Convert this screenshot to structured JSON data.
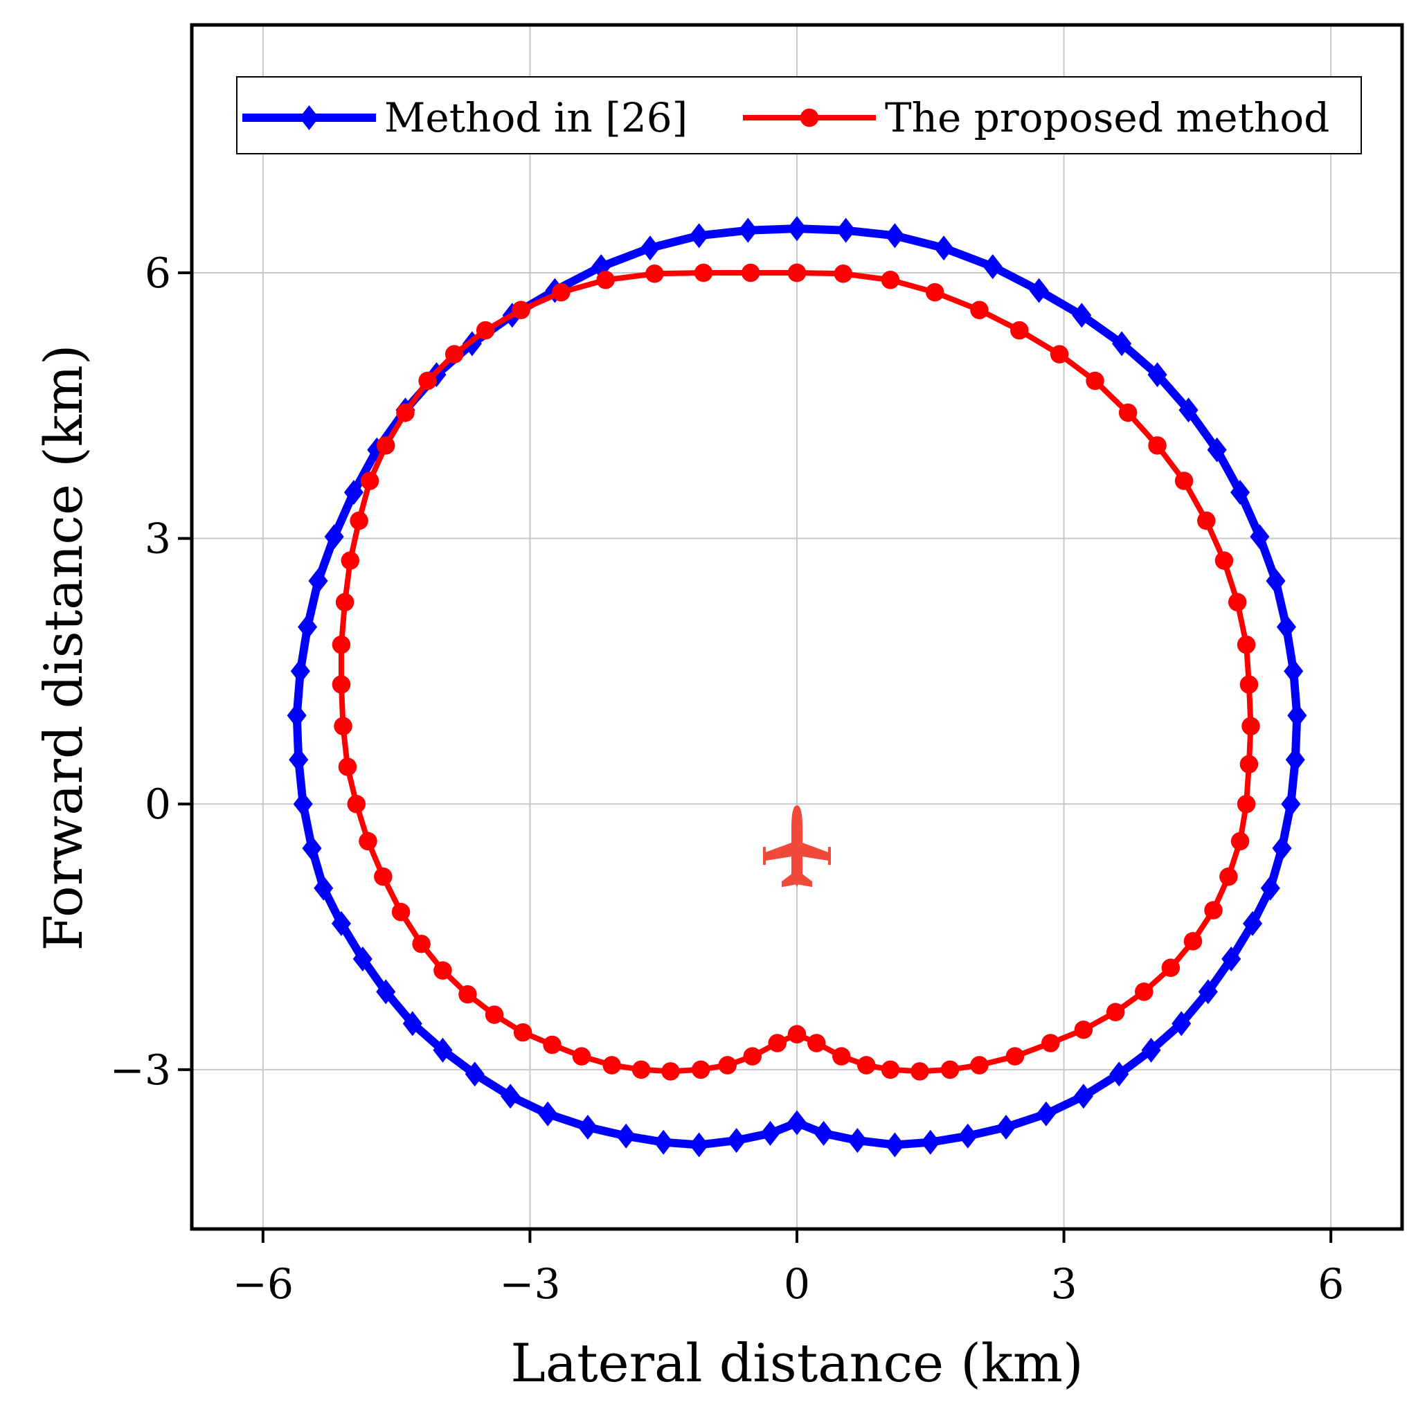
{
  "chart_data": {
    "type": "line",
    "xlabel": "Lateral distance (km)",
    "ylabel": "Forward distance (km)",
    "xlim": [
      -6.8,
      6.8
    ],
    "ylim": [
      -4.8,
      8.8
    ],
    "xticks": [
      -6,
      -3,
      0,
      3,
      6
    ],
    "yticks": [
      -3,
      0,
      3,
      6
    ],
    "xtick_labels": [
      "−6",
      "−3",
      "0",
      "3",
      "6"
    ],
    "ytick_labels": [
      "−3",
      "0",
      "3",
      "6"
    ],
    "grid": true,
    "legend_position": "top",
    "series": [
      {
        "name": "Method in [26]",
        "color": "#0000ff",
        "marker": "diamond",
        "x": [
          0,
          0.55,
          1.1,
          1.65,
          2.2,
          2.72,
          3.2,
          3.65,
          4.05,
          4.4,
          4.72,
          4.98,
          5.2,
          5.38,
          5.5,
          5.58,
          5.62,
          5.6,
          5.55,
          5.45,
          5.32,
          5.12,
          4.88,
          4.62,
          4.32,
          3.98,
          3.62,
          3.22,
          2.8,
          2.35,
          1.92,
          1.5,
          1.1,
          0.68,
          0.3,
          0,
          -0.3,
          -0.68,
          -1.1,
          -1.5,
          -1.92,
          -2.35,
          -2.8,
          -3.22,
          -3.62,
          -3.98,
          -4.32,
          -4.62,
          -4.88,
          -5.12,
          -5.32,
          -5.45,
          -5.55,
          -5.6,
          -5.62,
          -5.58,
          -5.5,
          -5.38,
          -5.2,
          -4.98,
          -4.72,
          -4.4,
          -4.05,
          -3.65,
          -3.2,
          -2.72,
          -2.2,
          -1.65,
          -1.1,
          -0.55,
          0
        ],
        "y": [
          6.5,
          6.48,
          6.42,
          6.28,
          6.07,
          5.8,
          5.52,
          5.2,
          4.85,
          4.45,
          4.0,
          3.52,
          3.02,
          2.52,
          2.0,
          1.5,
          1.0,
          0.5,
          0.0,
          -0.5,
          -0.95,
          -1.35,
          -1.75,
          -2.12,
          -2.48,
          -2.78,
          -3.05,
          -3.3,
          -3.5,
          -3.65,
          -3.75,
          -3.82,
          -3.85,
          -3.8,
          -3.72,
          -3.6,
          -3.72,
          -3.8,
          -3.85,
          -3.82,
          -3.75,
          -3.65,
          -3.5,
          -3.3,
          -3.05,
          -2.78,
          -2.48,
          -2.12,
          -1.75,
          -1.35,
          -0.95,
          -0.5,
          0.0,
          0.5,
          1.0,
          1.5,
          2.0,
          2.52,
          3.02,
          3.52,
          4.0,
          4.45,
          4.85,
          5.2,
          5.52,
          5.8,
          6.07,
          6.28,
          6.42,
          6.48,
          6.5
        ]
      },
      {
        "name": "The proposed method",
        "color": "#ff0000",
        "marker": "circle",
        "x": [
          0,
          0.52,
          1.05,
          1.55,
          2.05,
          2.5,
          2.95,
          3.35,
          3.72,
          4.05,
          4.35,
          4.6,
          4.8,
          4.95,
          5.05,
          5.08,
          5.1,
          5.08,
          5.05,
          4.98,
          4.85,
          4.68,
          4.45,
          4.2,
          3.9,
          3.58,
          3.22,
          2.85,
          2.45,
          2.05,
          1.72,
          1.38,
          1.05,
          0.78,
          0.5,
          0.22,
          0,
          -0.22,
          -0.5,
          -0.78,
          -1.08,
          -1.42,
          -1.75,
          -2.08,
          -2.42,
          -2.75,
          -3.08,
          -3.4,
          -3.7,
          -3.98,
          -4.22,
          -4.45,
          -4.65,
          -4.82,
          -4.95,
          -5.05,
          -5.1,
          -5.12,
          -5.12,
          -5.08,
          -5.02,
          -4.92,
          -4.8,
          -4.62,
          -4.4,
          -4.15,
          -3.85,
          -3.5,
          -3.1,
          -2.65,
          -2.15,
          -1.6,
          -1.05,
          -0.52,
          0
        ],
        "y": [
          6.0,
          5.99,
          5.92,
          5.78,
          5.58,
          5.35,
          5.08,
          4.78,
          4.42,
          4.05,
          3.65,
          3.2,
          2.75,
          2.28,
          1.8,
          1.35,
          0.88,
          0.45,
          0.0,
          -0.42,
          -0.82,
          -1.2,
          -1.55,
          -1.85,
          -2.12,
          -2.35,
          -2.55,
          -2.7,
          -2.85,
          -2.95,
          -3.0,
          -3.02,
          -3.0,
          -2.95,
          -2.85,
          -2.7,
          -2.6,
          -2.7,
          -2.85,
          -2.95,
          -3.0,
          -3.02,
          -3.0,
          -2.95,
          -2.85,
          -2.72,
          -2.58,
          -2.38,
          -2.15,
          -1.88,
          -1.58,
          -1.22,
          -0.82,
          -0.42,
          0.0,
          0.42,
          0.88,
          1.35,
          1.8,
          2.28,
          2.75,
          3.2,
          3.65,
          4.05,
          4.42,
          4.78,
          5.08,
          5.35,
          5.58,
          5.78,
          5.92,
          5.99,
          6.0,
          6.0,
          6.0
        ]
      }
    ],
    "annotations": [
      {
        "type": "aircraft-icon",
        "x": 0,
        "y": -0.5,
        "color": "#f04a3a"
      }
    ]
  }
}
